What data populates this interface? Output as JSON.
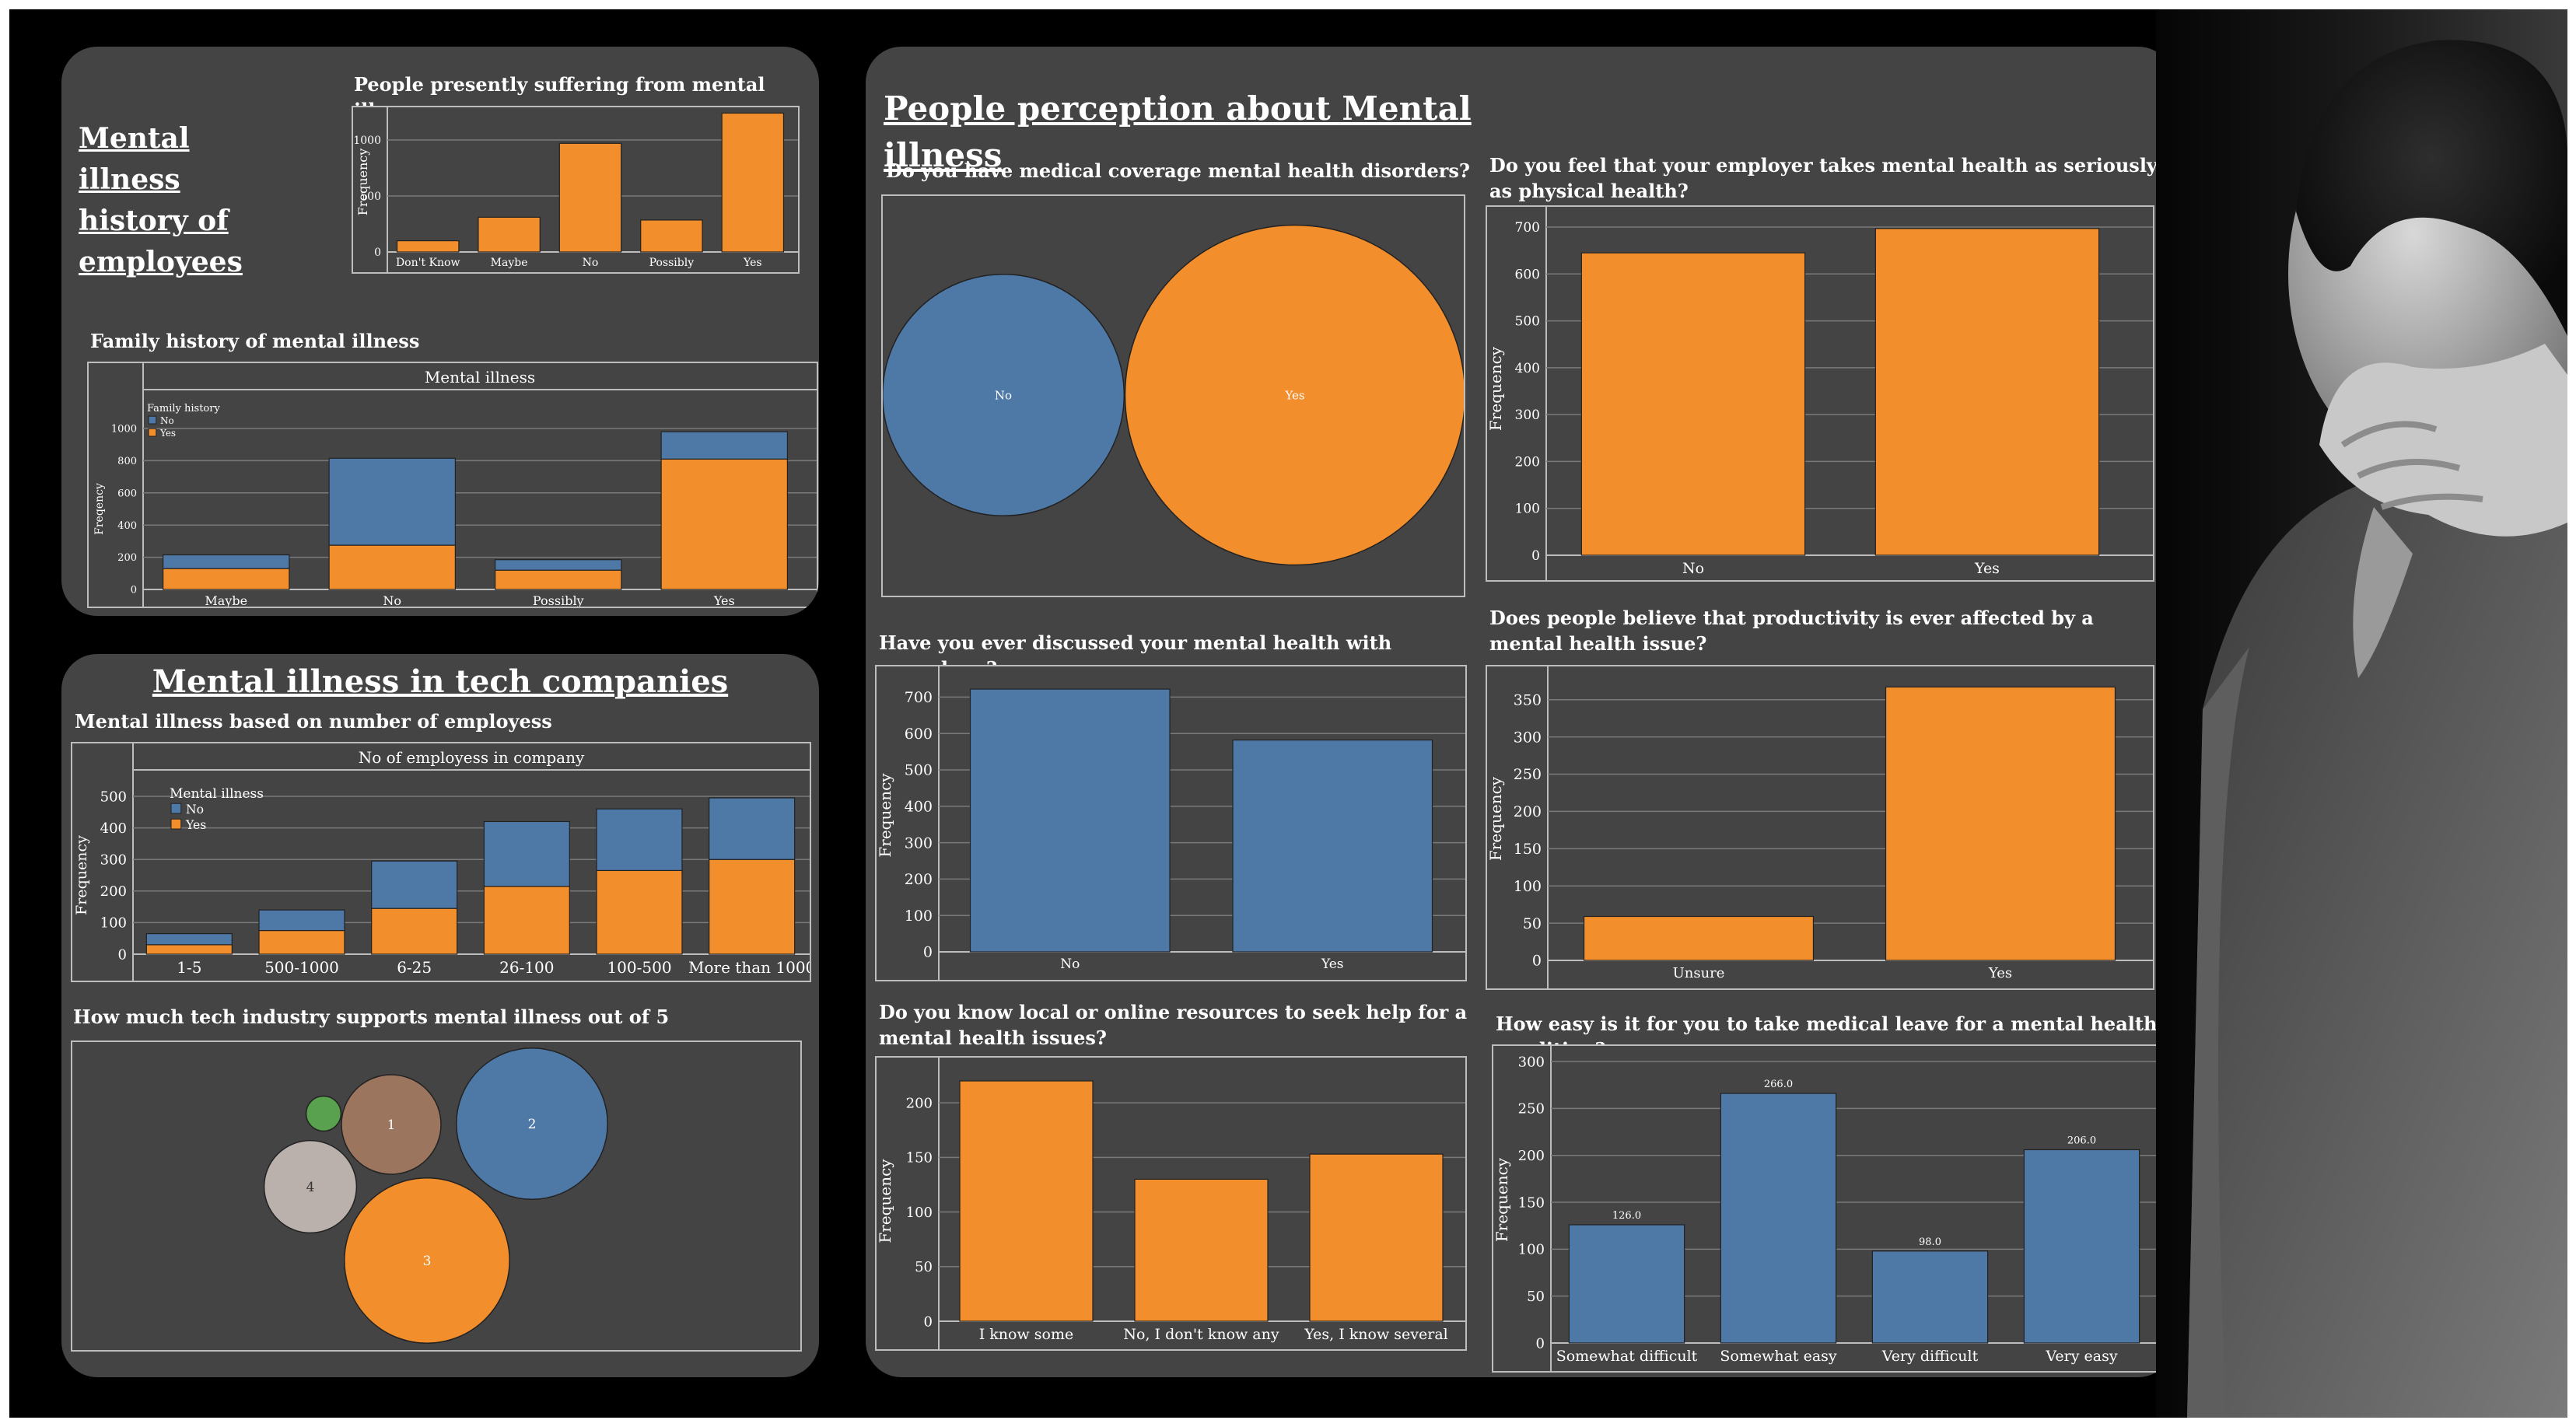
{
  "colors": {
    "orange": "#f28e2b",
    "blue": "#4e79a7",
    "panel": "#444444",
    "grid": "#7a7a7a"
  },
  "sections": {
    "history_title": "Mental illness history  of employees",
    "tech_title": "Mental illness in tech companies",
    "perception_title": "People perception about Mental illness"
  },
  "chart_data": [
    {
      "id": "present",
      "type": "bar",
      "title": "People presently suffering from mental illnes",
      "ylabel": "Frequency",
      "categories": [
        "Don't Know",
        "Maybe",
        "No",
        "Possibly",
        "Yes"
      ],
      "values": [
        100,
        310,
        970,
        285,
        1240
      ],
      "ylim": [
        0,
        1250
      ],
      "yticks": [
        0,
        500,
        1000
      ],
      "color": "orange"
    },
    {
      "id": "family",
      "type": "bar",
      "stacked": true,
      "title": "Family history of mental illness",
      "header": "Mental illness",
      "ylabel": "Freqency",
      "legend_title": "Family history",
      "legend_position": "top-left",
      "categories": [
        "Maybe",
        "No",
        "Possibly",
        "Yes"
      ],
      "series": [
        {
          "name": "Yes",
          "color": "orange",
          "values": [
            130,
            275,
            120,
            810
          ]
        },
        {
          "name": "No",
          "color": "blue",
          "values": [
            85,
            540,
            65,
            170
          ]
        }
      ],
      "ylim": [
        0,
        1000
      ],
      "yticks": [
        0,
        200,
        400,
        600,
        800,
        1000
      ]
    },
    {
      "id": "employees",
      "type": "bar",
      "stacked": true,
      "title": "Mental illness based on number of employess",
      "header": "No of employess in company",
      "ylabel": "Frequency",
      "legend_title": "Mental illness",
      "legend_position": "top-left",
      "categories": [
        "1-5",
        "500-1000",
        "6-25",
        "26-100",
        "100-500",
        "More than 1000"
      ],
      "series": [
        {
          "name": "Yes",
          "color": "orange",
          "values": [
            30,
            75,
            145,
            215,
            265,
            300
          ]
        },
        {
          "name": "No",
          "color": "blue",
          "values": [
            35,
            65,
            150,
            205,
            195,
            195
          ]
        }
      ],
      "ylim": [
        0,
        500
      ],
      "yticks": [
        0,
        100,
        200,
        300,
        400,
        500
      ]
    },
    {
      "id": "support",
      "type": "bubble",
      "title": "How much tech industry supports mental illness out of 5",
      "bubbles": [
        {
          "label": "",
          "value": 3,
          "color": "#e8d84a"
        },
        {
          "label": "",
          "value": 40,
          "color": "#59a14f"
        },
        {
          "label": "1",
          "value": 325,
          "color": "#9c755f"
        },
        {
          "label": "2",
          "value": 750,
          "color": "#4e79a7"
        },
        {
          "label": "4",
          "value": 280,
          "color": "#bab0ac"
        },
        {
          "label": "3",
          "value": 895,
          "color": "#f28e2b"
        }
      ]
    },
    {
      "id": "coverage",
      "type": "bubble",
      "title": "Do you have medical coverage  mental health disorders?",
      "bubbles": [
        {
          "label": "No",
          "value": 505,
          "color": "#4e79a7"
        },
        {
          "label": "Yes",
          "value": 1000,
          "color": "#f28e2b"
        }
      ]
    },
    {
      "id": "employer",
      "type": "bar",
      "title": "Do you feel that your employer takes mental health as seriously as physical health?",
      "ylabel": "Frequency",
      "categories": [
        "No",
        "Yes"
      ],
      "values": [
        645,
        697
      ],
      "ylim": [
        0,
        710
      ],
      "yticks": [
        0,
        100,
        200,
        300,
        400,
        500,
        600,
        700
      ],
      "color": "orange"
    },
    {
      "id": "coworkers",
      "type": "bar",
      "title": "Have you ever discussed your mental health with coworkers?",
      "ylabel": "Frequency",
      "categories": [
        "No",
        "Yes"
      ],
      "values": [
        722,
        582
      ],
      "ylim": [
        0,
        750
      ],
      "yticks": [
        0,
        100,
        200,
        300,
        400,
        500,
        600,
        700
      ],
      "color": "blue"
    },
    {
      "id": "productivity",
      "type": "bar",
      "title": "Does people believe that productivity is ever affected by a mental health issue?",
      "ylabel": "Frequency",
      "categories": [
        "Unsure",
        "Yes"
      ],
      "values": [
        59,
        367
      ],
      "ylim": [
        0,
        380
      ],
      "yticks": [
        0,
        50,
        100,
        150,
        200,
        250,
        300,
        350
      ],
      "color": "orange"
    },
    {
      "id": "resources",
      "type": "bar",
      "title": "Do you know local or online resources to seek help for a mental health issues?",
      "ylabel": "Frequency",
      "categories": [
        "I know some",
        "No, I don't know any",
        "Yes, I know several"
      ],
      "values": [
        220,
        130,
        153
      ],
      "ylim": [
        0,
        220
      ],
      "yticks": [
        0,
        50,
        100,
        150,
        200
      ],
      "color": "orange"
    },
    {
      "id": "leave",
      "type": "bar",
      "title": "How easy is it for you to take medical leave for a mental health condition?",
      "ylabel": "Frequency",
      "categories": [
        "Somewhat difficult",
        "Somewhat easy",
        "Very difficult",
        "Very easy"
      ],
      "values": [
        126,
        266,
        98,
        206
      ],
      "data_labels": [
        "126.0",
        "266.0",
        "98.0",
        "206.0"
      ],
      "ylim": [
        0,
        305
      ],
      "yticks": [
        0,
        50,
        100,
        150,
        200,
        250,
        300
      ],
      "color": "blue"
    }
  ]
}
